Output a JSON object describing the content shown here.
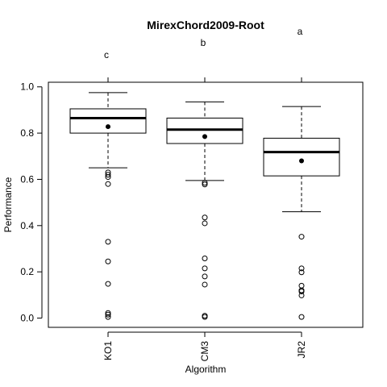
{
  "chart_data": {
    "type": "boxplot",
    "title": "MirexChord2009-Root",
    "xlabel": "Algorithm",
    "ylabel": "Performance",
    "ylim": [
      -0.04,
      1.02
    ],
    "yticks": [
      0.0,
      0.2,
      0.4,
      0.6,
      0.8,
      1.0
    ],
    "ytick_labels": [
      "0.0",
      "0.2",
      "0.4",
      "0.6",
      "0.8",
      "1.0"
    ],
    "grid": false,
    "categories": [
      "KO1",
      "CM3",
      "JR2"
    ],
    "significance_labels": [
      "c",
      "b",
      "a"
    ],
    "boxes": [
      {
        "name": "KO1",
        "whisker_low": 0.65,
        "q1": 0.8,
        "median": 0.865,
        "q3": 0.905,
        "whisker_high": 0.975,
        "mean": 0.828,
        "outliers": [
          0.63,
          0.62,
          0.61,
          0.58,
          0.33,
          0.245,
          0.148,
          0.022,
          0.015,
          0.005
        ]
      },
      {
        "name": "CM3",
        "whisker_low": 0.595,
        "q1": 0.755,
        "median": 0.815,
        "q3": 0.865,
        "whisker_high": 0.935,
        "mean": 0.785,
        "outliers": [
          0.585,
          0.578,
          0.435,
          0.41,
          0.258,
          0.215,
          0.18,
          0.145,
          0.01,
          0.005
        ]
      },
      {
        "name": "JR2",
        "whisker_low": 0.46,
        "q1": 0.615,
        "median": 0.718,
        "q3": 0.778,
        "whisker_high": 0.915,
        "mean": 0.68,
        "outliers": [
          0.352,
          0.215,
          0.198,
          0.14,
          0.12,
          0.115,
          0.098,
          0.005
        ]
      }
    ]
  }
}
